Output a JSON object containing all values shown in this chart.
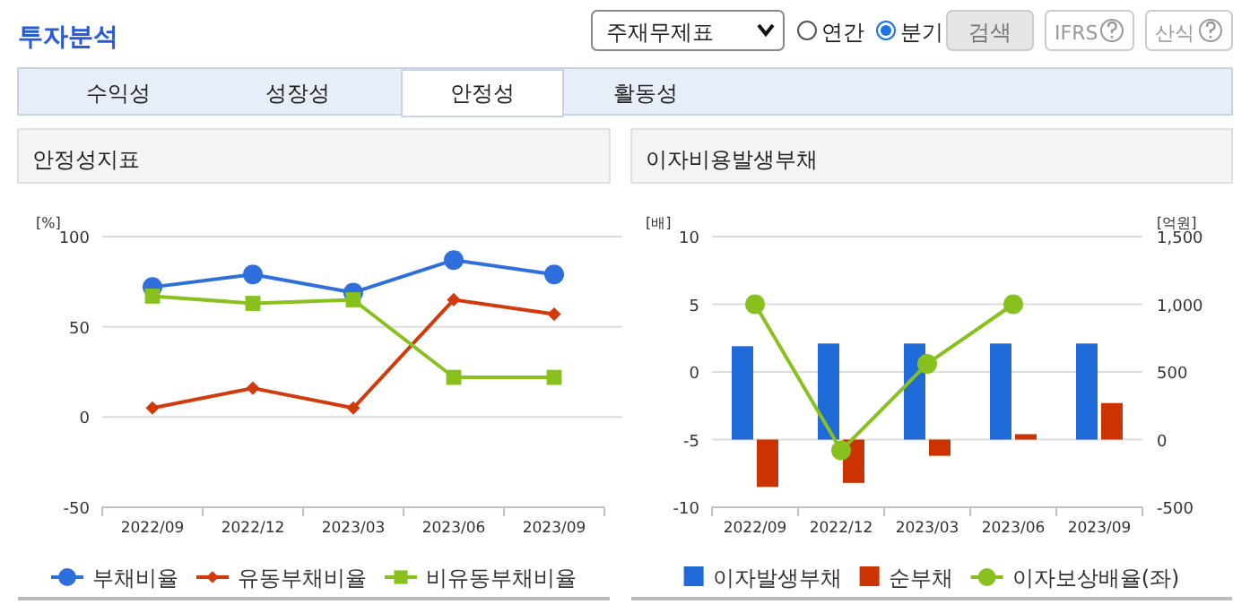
{
  "chart_data": [
    {
      "type": "other",
      "title": "투자분석",
      "annotations": [
        "주재무제표",
        "연간",
        "분기",
        "검색",
        "IFRS",
        "산식",
        "수익성",
        "성장성",
        "안정성",
        "활동성"
      ]
    },
    {
      "type": "line",
      "title": "안정성지표",
      "ylabel": "[%]",
      "categories": [
        "2022/09",
        "2022/12",
        "2023/03",
        "2023/06",
        "2023/09"
      ],
      "ylim": [
        -50,
        100
      ],
      "yticks": [
        -50,
        0,
        50,
        100
      ],
      "grid": "y",
      "legend": "bottom",
      "series": [
        {
          "name": "부채비율",
          "color": "#2f6fdc",
          "marker": "circle",
          "values": [
            72,
            79,
            69,
            87,
            79
          ]
        },
        {
          "name": "유동부채비율",
          "color": "#d13a0a",
          "marker": "diamond",
          "values": [
            5,
            16,
            5,
            65,
            57
          ]
        },
        {
          "name": "비유동부채비율",
          "color": "#88c11e",
          "marker": "square",
          "values": [
            67,
            63,
            65,
            22,
            22
          ]
        }
      ]
    },
    {
      "type": "bar",
      "title": "이자비용발생부채",
      "ylabel": "[배]",
      "y2label": "[억원]",
      "categories": [
        "2022/09",
        "2022/12",
        "2023/03",
        "2023/06",
        "2023/09"
      ],
      "ylim": [
        -10,
        10
      ],
      "yticks": [
        -10,
        -5,
        0,
        5,
        10
      ],
      "y2lim": [
        -500,
        1500
      ],
      "y2ticks": [
        -500,
        0,
        500,
        {
          "value": 1000,
          "label": "1,000"
        },
        {
          "value": 1500,
          "label": "1,500"
        }
      ],
      "grid": "y",
      "legend": "bottom",
      "series": [
        {
          "name": "이자발생부채",
          "type": "bar",
          "axis": "y2",
          "color": "#1f6ad9",
          "values": [
            690,
            710,
            710,
            710,
            710
          ]
        },
        {
          "name": "순부채",
          "type": "bar",
          "axis": "y2",
          "color": "#cc3300",
          "values": [
            -350,
            -320,
            -120,
            40,
            270
          ]
        },
        {
          "name": "이자보상배율(좌)",
          "type": "line",
          "axis": "y",
          "color": "#88c11e",
          "marker": "circle",
          "values": [
            5.0,
            -5.8,
            0.6,
            5.0,
            null
          ]
        }
      ]
    }
  ]
}
